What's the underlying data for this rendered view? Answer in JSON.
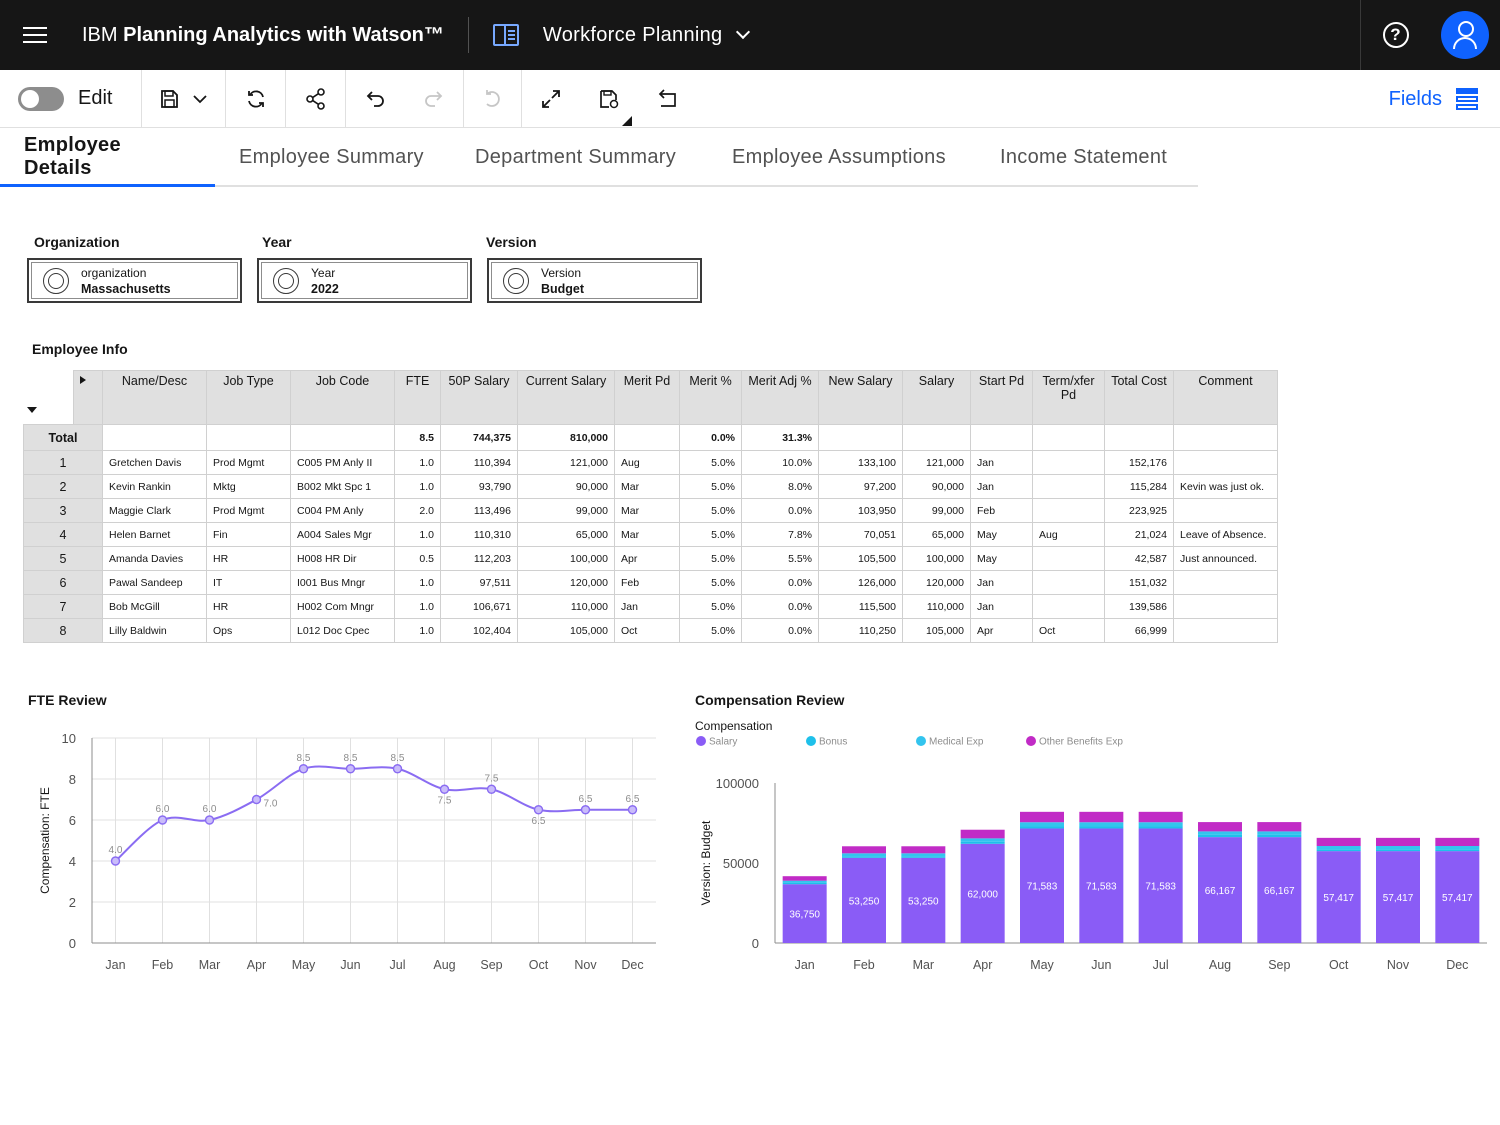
{
  "app": {
    "brand_prefix": "IBM",
    "brand_name": "Planning Analytics with Watson™",
    "workspace": "Workforce Planning"
  },
  "toolbar": {
    "edit_label": "Edit",
    "fields_label": "Fields"
  },
  "tabs": [
    {
      "label": "Employee Details",
      "active": true
    },
    {
      "label": "Employee Summary",
      "active": false
    },
    {
      "label": "Department Summary",
      "active": false
    },
    {
      "label": "Employee Assumptions",
      "active": false
    },
    {
      "label": "Income Statement",
      "active": false
    }
  ],
  "selectors": [
    {
      "label": "Organization",
      "dimension": "organization",
      "value": "Massachusetts"
    },
    {
      "label": "Year",
      "dimension": "Year",
      "value": "2022"
    },
    {
      "label": "Version",
      "dimension": "Version",
      "value": "Budget"
    }
  ],
  "employee_info": {
    "title": "Employee Info",
    "columns": [
      "Name/Desc",
      "Job Type",
      "Job Code",
      "FTE",
      "50P Salary",
      "Current Salary",
      "Merit Pd",
      "Merit %",
      "Merit Adj %",
      "New Salary",
      "Salary",
      "Start Pd",
      "Term/xfer Pd",
      "Total Cost",
      "Comment"
    ],
    "total": {
      "label": "Total",
      "cells": [
        "",
        "",
        "",
        "8.5",
        "744,375",
        "810,000",
        "",
        "0.0%",
        "31.3%",
        "",
        "",
        "",
        "",
        "",
        ""
      ]
    },
    "rows": [
      {
        "id": "1",
        "cells": [
          "Gretchen Davis",
          "Prod Mgmt",
          "C005 PM Anly II",
          "1.0",
          "110,394",
          "121,000",
          "Aug",
          "5.0%",
          "10.0%",
          "133,100",
          "121,000",
          "Jan",
          "",
          "152,176",
          ""
        ]
      },
      {
        "id": "2",
        "cells": [
          "Kevin Rankin",
          "Mktg",
          "B002 Mkt Spc 1",
          "1.0",
          "93,790",
          "90,000",
          "Mar",
          "5.0%",
          "8.0%",
          "97,200",
          "90,000",
          "Jan",
          "",
          "115,284",
          "Kevin was just ok."
        ]
      },
      {
        "id": "3",
        "cells": [
          "Maggie Clark",
          "Prod Mgmt",
          "C004 PM Anly",
          "2.0",
          "113,496",
          "99,000",
          "Mar",
          "5.0%",
          "0.0%",
          "103,950",
          "99,000",
          "Feb",
          "",
          "223,925",
          ""
        ]
      },
      {
        "id": "4",
        "cells": [
          "Helen Barnet",
          "Fin",
          "A004 Sales Mgr",
          "1.0",
          "110,310",
          "65,000",
          "Mar",
          "5.0%",
          "7.8%",
          "70,051",
          "65,000",
          "May",
          "Aug",
          "21,024",
          "Leave of Absence."
        ]
      },
      {
        "id": "5",
        "cells": [
          "Amanda Davies",
          "HR",
          "H008 HR Dir",
          "0.5",
          "112,203",
          "100,000",
          "Apr",
          "5.0%",
          "5.5%",
          "105,500",
          "100,000",
          "May",
          "",
          "42,587",
          "Just announced."
        ]
      },
      {
        "id": "6",
        "cells": [
          "Pawal Sandeep",
          "IT",
          "I001 Bus Mngr",
          "1.0",
          "97,511",
          "120,000",
          "Feb",
          "5.0%",
          "0.0%",
          "126,000",
          "120,000",
          "Jan",
          "",
          "151,032",
          ""
        ]
      },
      {
        "id": "7",
        "cells": [
          "Bob McGill",
          "HR",
          "H002 Com Mngr",
          "1.0",
          "106,671",
          "110,000",
          "Jan",
          "5.0%",
          "0.0%",
          "115,500",
          "110,000",
          "Jan",
          "",
          "139,586",
          ""
        ]
      },
      {
        "id": "8",
        "cells": [
          "Lilly Baldwin",
          "Ops",
          "L012 Doc Cpec",
          "1.0",
          "102,404",
          "105,000",
          "Oct",
          "5.0%",
          "0.0%",
          "110,250",
          "105,000",
          "Apr",
          "Oct",
          "66,999",
          ""
        ]
      }
    ]
  },
  "chart_data": [
    {
      "type": "line",
      "title": "FTE Review",
      "ylabel": "Compensation: FTE",
      "xlabel": "",
      "categories": [
        "Jan",
        "Feb",
        "Mar",
        "Apr",
        "May",
        "Jun",
        "Jul",
        "Aug",
        "Sep",
        "Oct",
        "Nov",
        "Dec"
      ],
      "values": [
        4.0,
        6.0,
        6.0,
        7.0,
        8.5,
        8.5,
        8.5,
        7.5,
        7.5,
        6.5,
        6.5,
        6.5
      ],
      "point_labels": [
        "4.0",
        "6.0",
        "6.0",
        "7.0",
        "8.5",
        "8.5",
        "8.5",
        "7.5",
        "7.5",
        "6.5",
        "6.5",
        "6.5"
      ],
      "yticks": [
        "0",
        "2",
        "4",
        "6",
        "8",
        "10"
      ],
      "ylim": [
        0,
        10
      ],
      "grid": true,
      "color": "#8a6cf2"
    },
    {
      "type": "bar",
      "stacked": true,
      "title": "Compensation Review",
      "subtitle": "Compensation",
      "ylabel": "Version: Budget",
      "categories": [
        "Jan",
        "Feb",
        "Mar",
        "Apr",
        "May",
        "Jun",
        "Jul",
        "Aug",
        "Sep",
        "Oct",
        "Nov",
        "Dec"
      ],
      "series": [
        {
          "name": "Salary",
          "color": "#8a5cf6",
          "values": [
            36750,
            53250,
            53250,
            62000,
            71583,
            71583,
            71583,
            66167,
            66167,
            57417,
            57417,
            57417
          ],
          "labels": [
            "36,750",
            "53,250",
            "53,250",
            "62,000",
            "71,583",
            "71,583",
            "71,583",
            "66,167",
            "66,167",
            "57,417",
            "57,417",
            "57,417"
          ]
        },
        {
          "name": "Bonus",
          "color": "#1ec0ea",
          "values": [
            800,
            1000,
            1000,
            1300,
            1500,
            1500,
            1500,
            1400,
            1400,
            1200,
            1200,
            1200
          ]
        },
        {
          "name": "Medical Exp",
          "color": "#33c4ee",
          "values": [
            1400,
            1800,
            1800,
            2100,
            2400,
            2400,
            2400,
            2200,
            2200,
            2000,
            2000,
            2000
          ]
        },
        {
          "name": "Other Benefits Exp",
          "color": "#c12bc6",
          "values": [
            2800,
            4400,
            4400,
            5400,
            6500,
            6500,
            6500,
            5800,
            5800,
            5100,
            5100,
            5100
          ]
        }
      ],
      "yticks": [
        "0",
        "50000",
        "100000"
      ],
      "ylim": [
        0,
        100000
      ],
      "grid": false,
      "legend_position": "top-left"
    }
  ]
}
